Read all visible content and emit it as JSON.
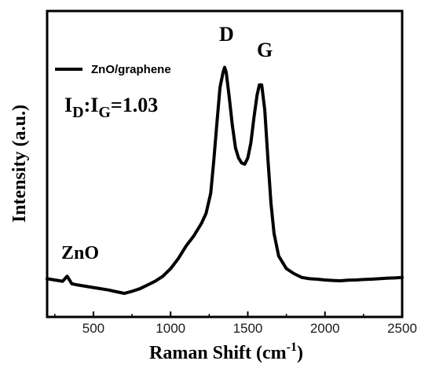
{
  "chart_data": {
    "type": "line",
    "xlabel": "Raman Shift (cm",
    "xlabel_superscript": "-1",
    "xlabel_close": ")",
    "ylabel": "Intensity (a.u.)",
    "xlim": [
      200,
      2500
    ],
    "ylim": [
      0,
      1
    ],
    "x_ticks": [
      500,
      1000,
      1500,
      2000,
      2500
    ],
    "x_tick_labels": [
      "500",
      "1000",
      "1500",
      "2000",
      "2500"
    ],
    "y_ticks_shown": false,
    "legend": {
      "position": "top-left",
      "entries": [
        "ZnO/graphene"
      ]
    },
    "annotations": {
      "ratio_I": "I",
      "ratio_D": "D",
      "ratio_colon": ":I",
      "ratio_G": "G",
      "ratio_value": "=1.03",
      "peak_d_label": "D",
      "peak_g_label": "G",
      "zno_label": "ZnO"
    },
    "series": [
      {
        "name": "ZnO/graphene",
        "color": "#000000",
        "points": [
          [
            200,
            0.08
          ],
          [
            250,
            0.075
          ],
          [
            300,
            0.07
          ],
          [
            330,
            0.09
          ],
          [
            360,
            0.06
          ],
          [
            400,
            0.055
          ],
          [
            450,
            0.05
          ],
          [
            500,
            0.045
          ],
          [
            550,
            0.04
          ],
          [
            600,
            0.035
          ],
          [
            650,
            0.028
          ],
          [
            700,
            0.022
          ],
          [
            750,
            0.03
          ],
          [
            800,
            0.04
          ],
          [
            850,
            0.055
          ],
          [
            900,
            0.07
          ],
          [
            950,
            0.09
          ],
          [
            1000,
            0.12
          ],
          [
            1050,
            0.16
          ],
          [
            1100,
            0.21
          ],
          [
            1150,
            0.25
          ],
          [
            1200,
            0.3
          ],
          [
            1230,
            0.34
          ],
          [
            1260,
            0.42
          ],
          [
            1280,
            0.55
          ],
          [
            1300,
            0.7
          ],
          [
            1320,
            0.84
          ],
          [
            1340,
            0.9
          ],
          [
            1350,
            0.92
          ],
          [
            1360,
            0.9
          ],
          [
            1380,
            0.8
          ],
          [
            1400,
            0.69
          ],
          [
            1420,
            0.6
          ],
          [
            1440,
            0.56
          ],
          [
            1460,
            0.54
          ],
          [
            1480,
            0.535
          ],
          [
            1500,
            0.56
          ],
          [
            1520,
            0.62
          ],
          [
            1540,
            0.72
          ],
          [
            1560,
            0.81
          ],
          [
            1575,
            0.85
          ],
          [
            1590,
            0.85
          ],
          [
            1610,
            0.75
          ],
          [
            1630,
            0.56
          ],
          [
            1650,
            0.38
          ],
          [
            1670,
            0.26
          ],
          [
            1700,
            0.17
          ],
          [
            1750,
            0.12
          ],
          [
            1800,
            0.1
          ],
          [
            1850,
            0.085
          ],
          [
            1900,
            0.08
          ],
          [
            1950,
            0.078
          ],
          [
            2000,
            0.075
          ],
          [
            2050,
            0.073
          ],
          [
            2100,
            0.072
          ],
          [
            2150,
            0.074
          ],
          [
            2200,
            0.075
          ],
          [
            2250,
            0.077
          ],
          [
            2300,
            0.078
          ],
          [
            2350,
            0.08
          ],
          [
            2400,
            0.082
          ],
          [
            2450,
            0.083
          ],
          [
            2500,
            0.085
          ]
        ]
      }
    ]
  }
}
